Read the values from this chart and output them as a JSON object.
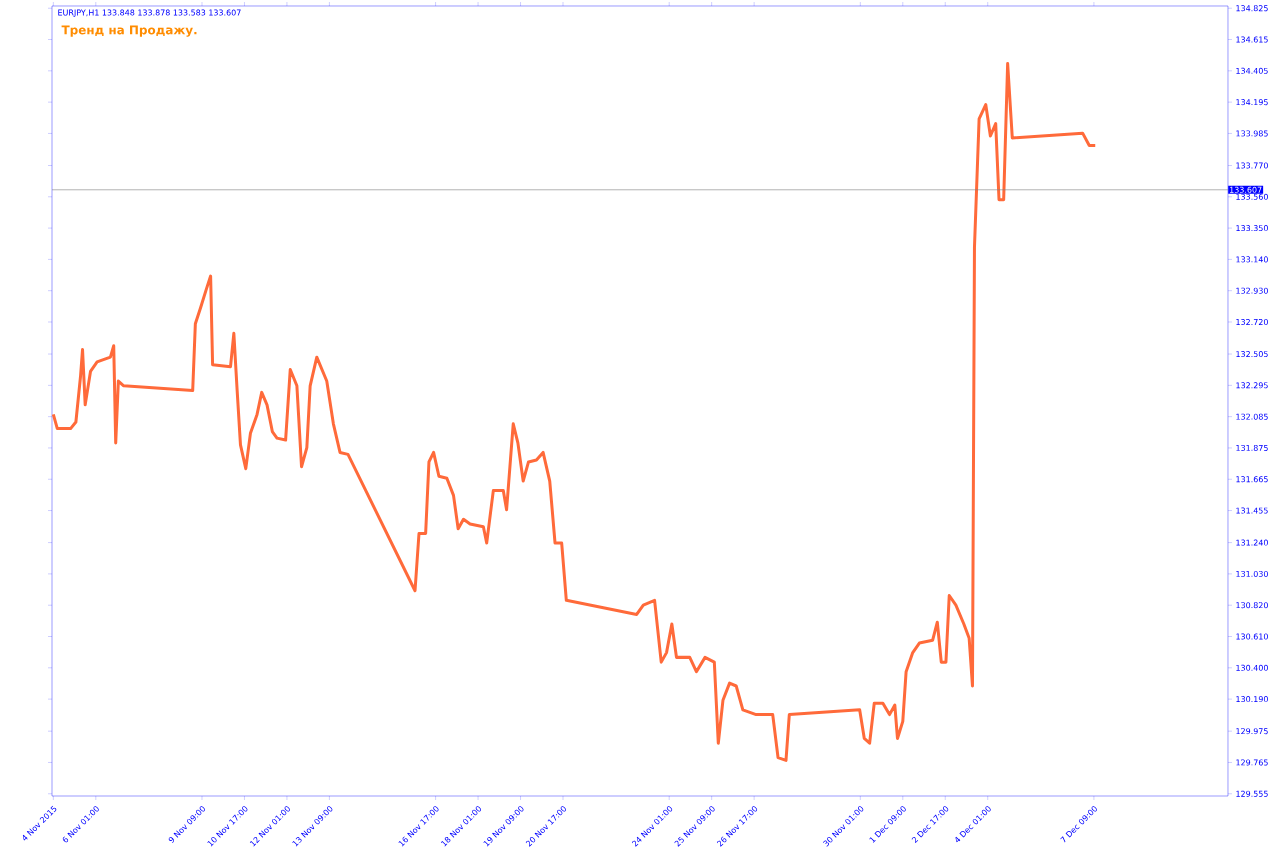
{
  "chart_data": {
    "type": "line",
    "annotations": [
      "EURJPY,H1  133.848 133.878 133.583 133.607",
      "Тренд на Продажу."
    ],
    "series": [
      {
        "color": "#ff6a3a",
        "x": [
          "2015-11-04T17:00",
          "2015-11-04T20:00",
          "2015-11-05T06:00",
          "2015-11-05T10:00",
          "2015-11-05T13:30",
          "2015-11-05T15:00",
          "2015-11-05T17:00",
          "2015-11-05T21:00",
          "2015-11-06T02:00",
          "2015-11-06T12:00",
          "2015-11-06T14:30",
          "2015-11-06T16:00",
          "2015-11-06T18:00",
          "2015-11-06T22:00",
          "2015-11-09T02:00",
          "2015-11-09T04:00",
          "2015-11-09T08:00",
          "2015-11-09T12:00",
          "2015-11-09T15:30",
          "2015-11-09T17:00",
          "2015-11-10T06:30",
          "2015-11-10T09:00",
          "2015-11-10T11:30",
          "2015-11-10T14:00",
          "2015-11-10T18:00",
          "2015-11-10T21:30",
          "2015-11-11T02:30",
          "2015-11-11T06:00",
          "2015-11-11T10:00",
          "2015-11-11T14:00",
          "2015-11-11T17:30",
          "2015-11-12T00:00",
          "2015-11-12T03:30",
          "2015-11-12T08:30",
          "2015-11-12T12:00",
          "2015-11-12T16:00",
          "2015-11-12T18:30",
          "2015-11-12T23:30",
          "2015-11-13T07:00",
          "2015-11-13T12:00",
          "2015-11-13T17:00",
          "2015-11-13T23:00",
          "2015-11-16T01:30",
          "2015-11-16T04:30",
          "2015-11-16T09:30",
          "2015-11-16T12:00",
          "2015-11-16T15:30",
          "2015-11-16T19:30",
          "2015-11-17T01:30",
          "2015-11-17T06:30",
          "2015-11-17T10:00",
          "2015-11-17T14:00",
          "2015-11-17T19:00",
          "2015-11-18T05:00",
          "2015-11-18T07:30",
          "2015-11-18T12:30",
          "2015-11-18T20:00",
          "2015-11-18T22:30",
          "2015-11-19T03:30",
          "2015-11-19T07:00",
          "2015-11-19T11:00",
          "2015-11-19T15:00",
          "2015-11-19T21:00",
          "2015-11-20T02:00",
          "2015-11-20T07:00",
          "2015-11-20T11:00",
          "2015-11-20T16:00",
          "2015-11-20T19:30",
          "2015-11-23T00:30",
          "2015-11-23T05:30",
          "2015-11-23T14:00",
          "2015-11-23T19:00",
          "2015-11-23T23:00",
          "2015-11-24T03:00",
          "2015-11-24T06:30",
          "2015-11-24T16:30",
          "2015-11-24T21:30",
          "2015-11-25T04:00",
          "2015-11-25T11:00",
          "2015-11-25T14:00",
          "2015-11-25T17:30",
          "2015-11-25T22:30",
          "2015-11-26T03:30",
          "2015-11-26T08:30",
          "2015-11-26T18:30",
          "2015-11-27T07:00",
          "2015-11-27T11:00",
          "2015-11-27T17:00",
          "2015-11-27T19:30",
          "2015-11-30T00:30",
          "2015-11-30T04:00",
          "2015-11-30T08:00",
          "2015-11-30T11:30",
          "2015-11-30T18:00",
          "2015-11-30T23:00",
          "2015-12-01T03:00",
          "2015-12-01T05:00",
          "2015-12-01T09:00",
          "2015-12-01T11:30",
          "2015-12-01T16:30",
          "2015-12-01T21:30",
          "2015-12-02T07:30",
          "2015-12-02T11:00",
          "2015-12-02T14:00",
          "2015-12-02T17:30",
          "2015-12-02T20:00",
          "2015-12-03T01:00",
          "2015-12-03T07:00",
          "2015-12-03T11:00",
          "2015-12-03T13:30",
          "2015-12-03T15:00",
          "2015-12-03T18:30",
          "2015-12-03T23:30",
          "2015-12-04T03:00",
          "2015-12-04T07:00",
          "2015-12-04T09:30",
          "2015-12-04T13:00",
          "2015-12-04T16:00",
          "2015-12-04T19:30",
          "2015-12-07T00:30",
          "2015-12-07T05:30",
          "2015-12-07T10:00"
        ],
        "values": [
          132.1,
          132.005,
          132.005,
          132.049,
          132.356,
          132.535,
          132.164,
          132.388,
          132.452,
          132.484,
          132.561,
          131.909,
          132.324,
          132.292,
          132.26,
          132.708,
          132.817,
          132.932,
          133.028,
          132.433,
          132.42,
          132.644,
          132.26,
          131.896,
          131.736,
          131.973,
          132.1,
          132.248,
          132.164,
          131.985,
          131.941,
          131.928,
          132.401,
          132.292,
          131.749,
          131.877,
          132.292,
          132.484,
          132.324,
          132.037,
          131.845,
          131.832,
          130.917,
          131.301,
          131.301,
          131.781,
          131.845,
          131.685,
          131.672,
          131.557,
          131.333,
          131.397,
          131.365,
          131.346,
          131.237,
          131.589,
          131.589,
          131.461,
          132.037,
          131.909,
          131.653,
          131.781,
          131.794,
          131.845,
          131.653,
          131.237,
          131.237,
          130.853,
          130.758,
          130.821,
          130.853,
          130.438,
          130.502,
          130.694,
          130.47,
          130.47,
          130.374,
          130.47,
          130.438,
          129.894,
          130.182,
          130.297,
          130.278,
          130.118,
          130.086,
          130.086,
          129.798,
          129.779,
          130.086,
          130.118,
          129.926,
          129.894,
          130.163,
          130.163,
          130.086,
          130.15,
          129.926,
          130.041,
          130.374,
          130.502,
          130.566,
          130.585,
          130.706,
          130.438,
          130.438,
          130.885,
          130.821,
          130.694,
          130.598,
          130.278,
          133.22,
          134.083,
          134.179,
          133.968,
          134.051,
          133.54,
          133.54,
          134.454,
          133.955,
          133.987,
          133.904,
          133.904
        ]
      }
    ],
    "xlim": [
      "2015-11-04T16:00",
      "2015-12-11T14:00"
    ],
    "xticks": [
      {
        "value": "2015-11-04T17:00",
        "label": "4 Nov 2015"
      },
      {
        "value": "2015-11-06T01:00",
        "label": "6 Nov 01:00"
      },
      {
        "value": "2015-11-09T09:00",
        "label": "9 Nov 09:00"
      },
      {
        "value": "2015-11-10T17:00",
        "label": "10 Nov 17:00"
      },
      {
        "value": "2015-11-12T01:00",
        "label": "12 Nov 01:00"
      },
      {
        "value": "2015-11-13T09:00",
        "label": "13 Nov 09:00"
      },
      {
        "value": "2015-11-16T17:00",
        "label": "16 Nov 17:00"
      },
      {
        "value": "2015-11-18T01:00",
        "label": "18 Nov 01:00"
      },
      {
        "value": "2015-11-19T09:00",
        "label": "19 Nov 09:00"
      },
      {
        "value": "2015-11-20T17:00",
        "label": "20 Nov 17:00"
      },
      {
        "value": "2015-11-24T01:00",
        "label": "24 Nov 01:00"
      },
      {
        "value": "2015-11-25T09:00",
        "label": "25 Nov 09:00"
      },
      {
        "value": "2015-11-26T17:00",
        "label": "26 Nov 17:00"
      },
      {
        "value": "2015-11-30T01:00",
        "label": "30 Nov 01:00"
      },
      {
        "value": "2015-12-01T09:00",
        "label": "1 Dec 09:00"
      },
      {
        "value": "2015-12-02T17:00",
        "label": "2 Dec 17:00"
      },
      {
        "value": "2015-12-04T01:00",
        "label": "4 Dec 01:00"
      },
      {
        "value": "2015-12-07T09:00",
        "label": "7 Dec 09:00"
      }
    ],
    "ylim": [
      129.54,
      134.84
    ],
    "yticks": [
      129.555,
      129.765,
      129.975,
      {
        "value": 130.19,
        "label": "130.190"
      },
      {
        "value": 130.4,
        "label": "130.400"
      },
      {
        "value": 130.61,
        "label": "130.610"
      },
      {
        "value": 130.82,
        "label": "130.820"
      },
      {
        "value": 131.03,
        "label": "131.030"
      },
      {
        "value": 131.24,
        "label": "131.240"
      },
      131.455,
      131.665,
      131.875,
      132.085,
      132.295,
      132.505,
      {
        "value": 132.72,
        "label": "132.720"
      },
      {
        "value": 132.93,
        "label": "132.930"
      },
      {
        "value": 133.14,
        "label": "133.140"
      },
      {
        "value": 133.35,
        "label": "133.350"
      },
      {
        "value": 133.56,
        "label": "133.560"
      },
      {
        "value": 133.77,
        "label": "133.770"
      },
      133.985,
      134.195,
      134.405,
      134.615,
      134.825
    ],
    "ref_lines": [
      {
        "axis": "y",
        "value": 133.607,
        "label": "133.607",
        "color": "#808080"
      }
    ]
  }
}
